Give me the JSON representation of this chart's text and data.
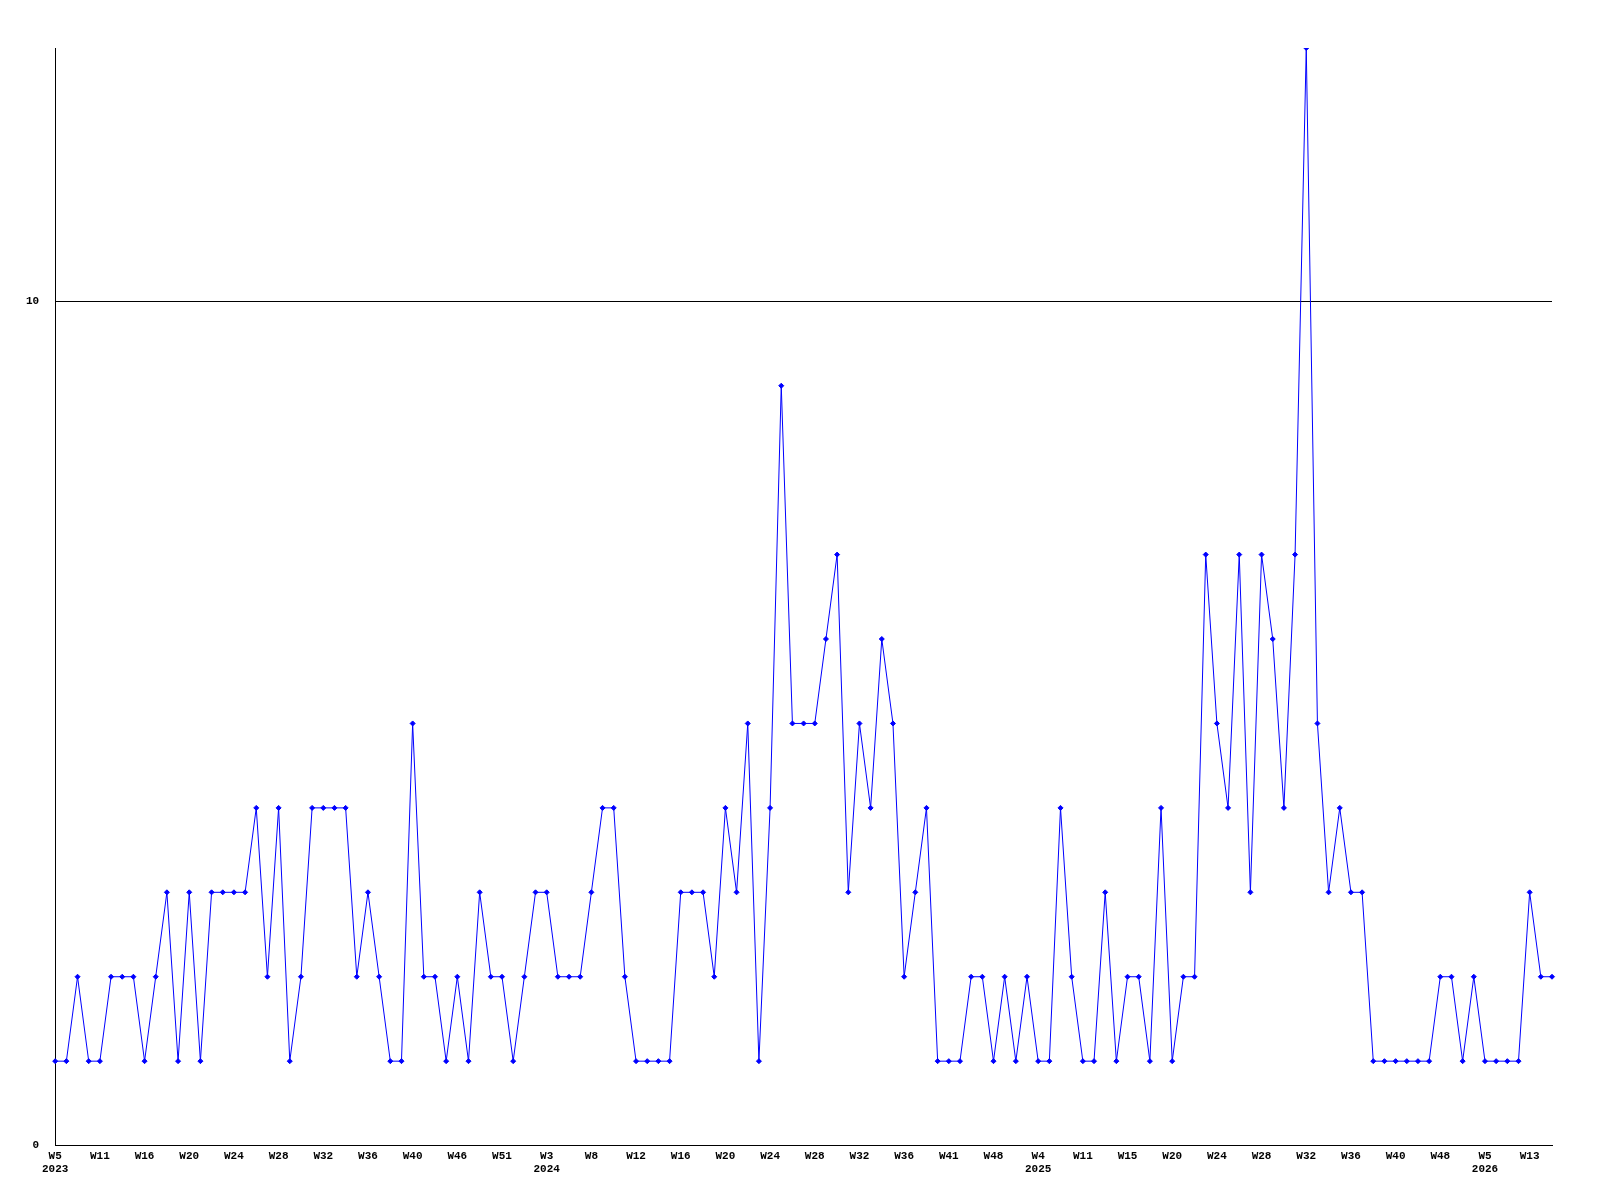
{
  "chart_data": {
    "type": "line",
    "categories": [
      "W5 2023",
      null,
      null,
      null,
      "W11",
      null,
      null,
      null,
      "W16",
      null,
      null,
      null,
      "W20",
      null,
      null,
      null,
      "W24",
      null,
      null,
      null,
      "W28",
      null,
      null,
      null,
      "W32",
      null,
      null,
      null,
      "W36",
      null,
      null,
      null,
      "W40",
      null,
      null,
      null,
      "W46",
      null,
      null,
      null,
      "W51",
      null,
      null,
      null,
      "W3 2024",
      null,
      null,
      null,
      "W8",
      null,
      null,
      null,
      "W12",
      null,
      null,
      null,
      "W16",
      null,
      null,
      null,
      "W20",
      null,
      null,
      null,
      "W24",
      null,
      null,
      null,
      "W28",
      null,
      null,
      null,
      "W32",
      null,
      null,
      null,
      "W36",
      null,
      null,
      null,
      "W41",
      null,
      null,
      null,
      "W48",
      null,
      null,
      null,
      "W4 2025",
      null,
      null,
      null,
      "W11",
      null,
      null,
      null,
      "W15",
      null,
      null,
      null,
      "W20",
      null,
      null,
      null,
      "W24",
      null,
      null,
      null,
      "W28",
      null,
      null,
      null,
      "W32",
      null,
      null,
      null,
      "W36",
      null,
      null,
      null,
      "W40",
      null,
      null,
      null,
      "W48",
      null,
      null,
      null,
      "W5 2026",
      null,
      null,
      null,
      "W13",
      null,
      null
    ],
    "series": [
      {
        "color": "#0000ff",
        "values": [
          1,
          1,
          2,
          1,
          1,
          2,
          2,
          2,
          1,
          2,
          3,
          1,
          3,
          1,
          3,
          3,
          3,
          3,
          4,
          2,
          4,
          1,
          2,
          4,
          4,
          4,
          4,
          2,
          3,
          2,
          1,
          1,
          5,
          2,
          2,
          1,
          2,
          1,
          3,
          2,
          2,
          1,
          2,
          3,
          3,
          2,
          2,
          2,
          3,
          4,
          4,
          2,
          1,
          1,
          1,
          1,
          3,
          3,
          3,
          2,
          4,
          3,
          5,
          1,
          4,
          9,
          5,
          5,
          5,
          6,
          7,
          3,
          5,
          4,
          6,
          5,
          2,
          3,
          4,
          1,
          1,
          1,
          2,
          2,
          1,
          2,
          1,
          2,
          1,
          1,
          4,
          2,
          1,
          1,
          3,
          1,
          2,
          2,
          1,
          4,
          1,
          2,
          2,
          7,
          5,
          4,
          7,
          3,
          7,
          6,
          4,
          7,
          13,
          5,
          3,
          4,
          3,
          3,
          1,
          1,
          1,
          1,
          1,
          1,
          2,
          2,
          1,
          2,
          1,
          1,
          1,
          1,
          3,
          2,
          2
        ]
      }
    ],
    "ylim": [
      0,
      13
    ],
    "yticks": [
      0,
      10
    ],
    "grid": "y",
    "legend": false,
    "marker": "diamond",
    "line_style": "solid"
  }
}
